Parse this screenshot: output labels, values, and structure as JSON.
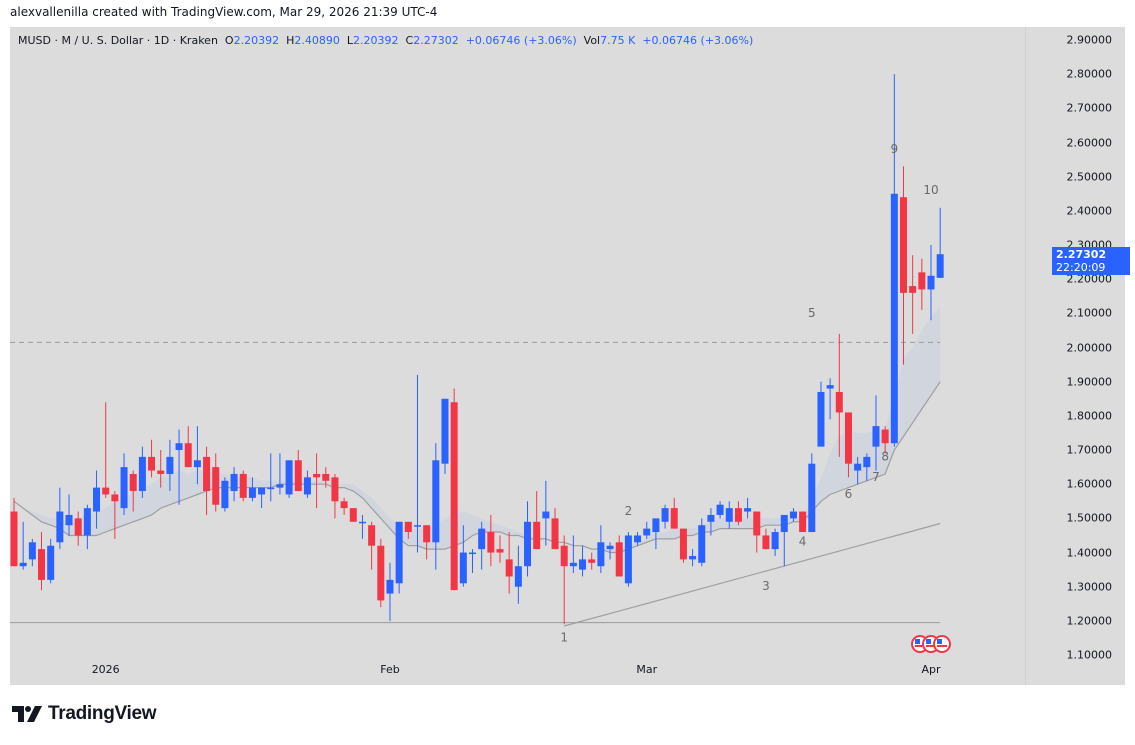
{
  "credit": "alexvallenilla created with TradingView.com, Mar 29, 2026 21:39 UTC-4",
  "legend": {
    "symbol": "MUSD · M / U. S. Dollar · 1D · Kraken",
    "o_label": "O",
    "o_value": "2.20392",
    "h_label": "H",
    "h_value": "2.40890",
    "l_label": "L",
    "l_value": "2.20392",
    "c_label": "C",
    "c_value": "2.27302",
    "change": "+0.06746 (+3.06%)",
    "vol_label": "Vol",
    "vol_value": "7.75 K",
    "vol_change": "+0.06746 (+3.06%)"
  },
  "last_price": {
    "price": "2.27302",
    "countdown": "22:20:09"
  },
  "brand": "TradingView",
  "colors": {
    "up": "#2962ff",
    "down": "#f23645",
    "background": "#dcdcdc",
    "ma_line": "#9e9e9e",
    "trendline": "#9e9e9e",
    "label": "#6a6a6a"
  },
  "chart_data": {
    "type": "candlestick",
    "title": "MUSD · M / U. S. Dollar · 1D · Kraken",
    "xlabel": "",
    "ylabel": "",
    "ylim": [
      1.1,
      2.9
    ],
    "y_ticks": [
      "2.90000",
      "2.80000",
      "2.70000",
      "2.60000",
      "2.50000",
      "2.40000",
      "2.30000",
      "2.20000",
      "2.10000",
      "2.00000",
      "1.90000",
      "1.80000",
      "1.70000",
      "1.60000",
      "1.50000",
      "1.40000",
      "1.30000",
      "1.20000",
      "1.10000"
    ],
    "x_ticks": [
      {
        "label": "2026",
        "index": 10
      },
      {
        "label": "Feb",
        "index": 41
      },
      {
        "label": "Mar",
        "index": 69
      },
      {
        "label": "Apr",
        "index": 100
      }
    ],
    "grid": false,
    "horizontal_level": 2.015,
    "support_line": 1.195,
    "candles": [
      {
        "o": 1.52,
        "h": 1.56,
        "l": 1.36,
        "c": 1.36
      },
      {
        "o": 1.36,
        "h": 1.49,
        "l": 1.35,
        "c": 1.37
      },
      {
        "o": 1.38,
        "h": 1.44,
        "l": 1.36,
        "c": 1.43
      },
      {
        "o": 1.41,
        "h": 1.46,
        "l": 1.29,
        "c": 1.32
      },
      {
        "o": 1.32,
        "h": 1.44,
        "l": 1.31,
        "c": 1.42
      },
      {
        "o": 1.43,
        "h": 1.59,
        "l": 1.41,
        "c": 1.52
      },
      {
        "o": 1.48,
        "h": 1.57,
        "l": 1.45,
        "c": 1.51
      },
      {
        "o": 1.5,
        "h": 1.52,
        "l": 1.42,
        "c": 1.45
      },
      {
        "o": 1.45,
        "h": 1.54,
        "l": 1.41,
        "c": 1.53
      },
      {
        "o": 1.52,
        "h": 1.64,
        "l": 1.47,
        "c": 1.59
      },
      {
        "o": 1.59,
        "h": 1.84,
        "l": 1.56,
        "c": 1.57
      },
      {
        "o": 1.57,
        "h": 1.58,
        "l": 1.44,
        "c": 1.55
      },
      {
        "o": 1.53,
        "h": 1.69,
        "l": 1.51,
        "c": 1.65
      },
      {
        "o": 1.63,
        "h": 1.64,
        "l": 1.52,
        "c": 1.58
      },
      {
        "o": 1.58,
        "h": 1.71,
        "l": 1.56,
        "c": 1.68
      },
      {
        "o": 1.68,
        "h": 1.73,
        "l": 1.62,
        "c": 1.64
      },
      {
        "o": 1.64,
        "h": 1.7,
        "l": 1.59,
        "c": 1.63
      },
      {
        "o": 1.63,
        "h": 1.73,
        "l": 1.58,
        "c": 1.68
      },
      {
        "o": 1.7,
        "h": 1.76,
        "l": 1.54,
        "c": 1.72
      },
      {
        "o": 1.72,
        "h": 1.77,
        "l": 1.65,
        "c": 1.65
      },
      {
        "o": 1.65,
        "h": 1.77,
        "l": 1.6,
        "c": 1.67
      },
      {
        "o": 1.68,
        "h": 1.71,
        "l": 1.51,
        "c": 1.58
      },
      {
        "o": 1.65,
        "h": 1.69,
        "l": 1.52,
        "c": 1.54
      },
      {
        "o": 1.53,
        "h": 1.62,
        "l": 1.52,
        "c": 1.61
      },
      {
        "o": 1.58,
        "h": 1.65,
        "l": 1.55,
        "c": 1.63
      },
      {
        "o": 1.63,
        "h": 1.64,
        "l": 1.55,
        "c": 1.56
      },
      {
        "o": 1.56,
        "h": 1.62,
        "l": 1.55,
        "c": 1.59
      },
      {
        "o": 1.57,
        "h": 1.59,
        "l": 1.53,
        "c": 1.59
      },
      {
        "o": 1.59,
        "h": 1.69,
        "l": 1.55,
        "c": 1.59
      },
      {
        "o": 1.59,
        "h": 1.69,
        "l": 1.57,
        "c": 1.6
      },
      {
        "o": 1.57,
        "h": 1.67,
        "l": 1.56,
        "c": 1.67
      },
      {
        "o": 1.67,
        "h": 1.7,
        "l": 1.58,
        "c": 1.58
      },
      {
        "o": 1.57,
        "h": 1.64,
        "l": 1.56,
        "c": 1.62
      },
      {
        "o": 1.63,
        "h": 1.69,
        "l": 1.53,
        "c": 1.62
      },
      {
        "o": 1.63,
        "h": 1.65,
        "l": 1.59,
        "c": 1.61
      },
      {
        "o": 1.62,
        "h": 1.63,
        "l": 1.5,
        "c": 1.55
      },
      {
        "o": 1.55,
        "h": 1.56,
        "l": 1.51,
        "c": 1.53
      },
      {
        "o": 1.53,
        "h": 1.52,
        "l": 1.49,
        "c": 1.49
      },
      {
        "o": 1.49,
        "h": 1.51,
        "l": 1.44,
        "c": 1.49
      },
      {
        "o": 1.48,
        "h": 1.49,
        "l": 1.35,
        "c": 1.42
      },
      {
        "o": 1.42,
        "h": 1.44,
        "l": 1.24,
        "c": 1.26
      },
      {
        "o": 1.28,
        "h": 1.37,
        "l": 1.2,
        "c": 1.32
      },
      {
        "o": 1.31,
        "h": 1.47,
        "l": 1.28,
        "c": 1.49
      },
      {
        "o": 1.49,
        "h": 1.48,
        "l": 1.44,
        "c": 1.46
      },
      {
        "o": 1.48,
        "h": 1.92,
        "l": 1.4,
        "c": 1.48
      },
      {
        "o": 1.48,
        "h": 1.47,
        "l": 1.38,
        "c": 1.43
      },
      {
        "o": 1.43,
        "h": 1.72,
        "l": 1.35,
        "c": 1.67
      },
      {
        "o": 1.66,
        "h": 1.85,
        "l": 1.63,
        "c": 1.85
      },
      {
        "o": 1.84,
        "h": 1.88,
        "l": 1.29,
        "c": 1.29
      },
      {
        "o": 1.31,
        "h": 1.48,
        "l": 1.3,
        "c": 1.4
      },
      {
        "o": 1.4,
        "h": 1.41,
        "l": 1.34,
        "c": 1.4
      },
      {
        "o": 1.41,
        "h": 1.49,
        "l": 1.35,
        "c": 1.47
      },
      {
        "o": 1.46,
        "h": 1.51,
        "l": 1.36,
        "c": 1.4
      },
      {
        "o": 1.41,
        "h": 1.45,
        "l": 1.37,
        "c": 1.4
      },
      {
        "o": 1.38,
        "h": 1.46,
        "l": 1.28,
        "c": 1.33
      },
      {
        "o": 1.3,
        "h": 1.42,
        "l": 1.25,
        "c": 1.36
      },
      {
        "o": 1.36,
        "h": 1.55,
        "l": 1.33,
        "c": 1.49
      },
      {
        "o": 1.49,
        "h": 1.58,
        "l": 1.43,
        "c": 1.41
      },
      {
        "o": 1.5,
        "h": 1.61,
        "l": 1.42,
        "c": 1.52
      },
      {
        "o": 1.5,
        "h": 1.53,
        "l": 1.41,
        "c": 1.41
      },
      {
        "o": 1.42,
        "h": 1.45,
        "l": 1.19,
        "c": 1.36
      },
      {
        "o": 1.36,
        "h": 1.45,
        "l": 1.34,
        "c": 1.37
      },
      {
        "o": 1.35,
        "h": 1.42,
        "l": 1.33,
        "c": 1.38
      },
      {
        "o": 1.38,
        "h": 1.4,
        "l": 1.35,
        "c": 1.37
      },
      {
        "o": 1.36,
        "h": 1.48,
        "l": 1.34,
        "c": 1.43
      },
      {
        "o": 1.41,
        "h": 1.43,
        "l": 1.38,
        "c": 1.42
      },
      {
        "o": 1.43,
        "h": 1.45,
        "l": 1.36,
        "c": 1.33
      },
      {
        "o": 1.31,
        "h": 1.46,
        "l": 1.3,
        "c": 1.45
      },
      {
        "o": 1.43,
        "h": 1.46,
        "l": 1.42,
        "c": 1.45
      },
      {
        "o": 1.45,
        "h": 1.49,
        "l": 1.44,
        "c": 1.47
      },
      {
        "o": 1.46,
        "h": 1.5,
        "l": 1.41,
        "c": 1.5
      },
      {
        "o": 1.49,
        "h": 1.54,
        "l": 1.47,
        "c": 1.53
      },
      {
        "o": 1.53,
        "h": 1.56,
        "l": 1.49,
        "c": 1.47
      },
      {
        "o": 1.47,
        "h": 1.46,
        "l": 1.37,
        "c": 1.38
      },
      {
        "o": 1.38,
        "h": 1.41,
        "l": 1.36,
        "c": 1.39
      },
      {
        "o": 1.37,
        "h": 1.5,
        "l": 1.36,
        "c": 1.48
      },
      {
        "o": 1.49,
        "h": 1.53,
        "l": 1.45,
        "c": 1.51
      },
      {
        "o": 1.51,
        "h": 1.55,
        "l": 1.5,
        "c": 1.54
      },
      {
        "o": 1.49,
        "h": 1.55,
        "l": 1.47,
        "c": 1.53
      },
      {
        "o": 1.53,
        "h": 1.55,
        "l": 1.48,
        "c": 1.49
      },
      {
        "o": 1.52,
        "h": 1.56,
        "l": 1.5,
        "c": 1.53
      },
      {
        "o": 1.52,
        "h": 1.52,
        "l": 1.4,
        "c": 1.45
      },
      {
        "o": 1.45,
        "h": 1.47,
        "l": 1.41,
        "c": 1.41
      },
      {
        "o": 1.41,
        "h": 1.47,
        "l": 1.39,
        "c": 1.46
      },
      {
        "o": 1.46,
        "h": 1.51,
        "l": 1.36,
        "c": 1.51
      },
      {
        "o": 1.5,
        "h": 1.53,
        "l": 1.49,
        "c": 1.52
      },
      {
        "o": 1.52,
        "h": 1.52,
        "l": 1.46,
        "c": 1.46
      },
      {
        "o": 1.46,
        "h": 1.69,
        "l": 1.46,
        "c": 1.66
      },
      {
        "o": 1.71,
        "h": 1.9,
        "l": 1.71,
        "c": 1.87
      },
      {
        "o": 1.88,
        "h": 1.91,
        "l": 1.79,
        "c": 1.89
      },
      {
        "o": 1.87,
        "h": 2.04,
        "l": 1.68,
        "c": 1.81
      },
      {
        "o": 1.81,
        "h": 1.81,
        "l": 1.62,
        "c": 1.66
      },
      {
        "o": 1.64,
        "h": 1.68,
        "l": 1.6,
        "c": 1.66
      },
      {
        "o": 1.65,
        "h": 1.69,
        "l": 1.61,
        "c": 1.68
      },
      {
        "o": 1.71,
        "h": 1.86,
        "l": 1.64,
        "c": 1.77
      },
      {
        "o": 1.76,
        "h": 1.77,
        "l": 1.69,
        "c": 1.72
      },
      {
        "o": 1.72,
        "h": 2.8,
        "l": 1.71,
        "c": 2.45
      },
      {
        "o": 2.44,
        "h": 2.53,
        "l": 1.95,
        "c": 2.16
      },
      {
        "o": 2.18,
        "h": 2.27,
        "l": 2.04,
        "c": 2.16
      },
      {
        "o": 2.22,
        "h": 2.26,
        "l": 2.11,
        "c": 2.17
      },
      {
        "o": 2.17,
        "h": 2.3,
        "l": 2.08,
        "c": 2.21
      },
      {
        "o": 2.20392,
        "h": 2.4089,
        "l": 2.20392,
        "c": 2.27302
      }
    ],
    "ma_band": {
      "upper": [
        1.55,
        1.53,
        1.52,
        1.51,
        1.5,
        1.5,
        1.49,
        1.5,
        1.51,
        1.52,
        1.53,
        1.55,
        1.56,
        1.58,
        1.59,
        1.6,
        1.62,
        1.63,
        1.64,
        1.63,
        1.64,
        1.64,
        1.63,
        1.63,
        1.62,
        1.62,
        1.62,
        1.61,
        1.61,
        1.61,
        1.61,
        1.61,
        1.61,
        1.61,
        1.61,
        1.6,
        1.6,
        1.6,
        1.58,
        1.56,
        1.53,
        1.5,
        1.48,
        1.47,
        1.47,
        1.47,
        1.48,
        1.5,
        1.51,
        1.52,
        1.51,
        1.5,
        1.49,
        1.48,
        1.47,
        1.46,
        1.45,
        1.45,
        1.44,
        1.44,
        1.43,
        1.42,
        1.42,
        1.41,
        1.41,
        1.41,
        1.41,
        1.42,
        1.43,
        1.44,
        1.46,
        1.46,
        1.47,
        1.47,
        1.47,
        1.48,
        1.49,
        1.5,
        1.5,
        1.5,
        1.5,
        1.5,
        1.5,
        1.5,
        1.5,
        1.5,
        1.5,
        1.55,
        1.62,
        1.69,
        1.74,
        1.76,
        1.75,
        1.75,
        1.76,
        1.76,
        1.85,
        1.97,
        2.0,
        2.05,
        2.09,
        2.12
      ],
      "lower": [
        1.55,
        1.53,
        1.51,
        1.49,
        1.48,
        1.47,
        1.45,
        1.45,
        1.45,
        1.45,
        1.46,
        1.47,
        1.48,
        1.49,
        1.5,
        1.51,
        1.53,
        1.54,
        1.55,
        1.56,
        1.57,
        1.58,
        1.59,
        1.59,
        1.59,
        1.59,
        1.59,
        1.59,
        1.59,
        1.6,
        1.6,
        1.6,
        1.6,
        1.6,
        1.6,
        1.59,
        1.59,
        1.58,
        1.56,
        1.53,
        1.5,
        1.47,
        1.44,
        1.42,
        1.42,
        1.41,
        1.41,
        1.41,
        1.42,
        1.43,
        1.45,
        1.46,
        1.46,
        1.46,
        1.45,
        1.45,
        1.44,
        1.44,
        1.44,
        1.43,
        1.43,
        1.42,
        1.42,
        1.41,
        1.41,
        1.4,
        1.4,
        1.41,
        1.42,
        1.43,
        1.44,
        1.44,
        1.44,
        1.45,
        1.45,
        1.46,
        1.46,
        1.47,
        1.47,
        1.47,
        1.47,
        1.47,
        1.48,
        1.48,
        1.48,
        1.49,
        1.49,
        1.52,
        1.55,
        1.57,
        1.58,
        1.59,
        1.6,
        1.61,
        1.62,
        1.63,
        1.7,
        1.74,
        1.78,
        1.82,
        1.86,
        1.9
      ]
    },
    "trendline": {
      "from": {
        "index": 60,
        "price": 1.185
      },
      "to": {
        "index": 101,
        "price": 1.485
      }
    },
    "wave_labels": [
      {
        "text": "1",
        "index": 60,
        "price": 1.14
      },
      {
        "text": "2",
        "index": 67,
        "price": 1.51
      },
      {
        "text": "3",
        "index": 82,
        "price": 1.29
      },
      {
        "text": "4",
        "index": 86,
        "price": 1.42
      },
      {
        "text": "5",
        "index": 87,
        "price": 2.09
      },
      {
        "text": "6",
        "index": 91,
        "price": 1.56
      },
      {
        "text": "7",
        "index": 94,
        "price": 1.61
      },
      {
        "text": "8",
        "index": 95,
        "price": 1.67
      },
      {
        "text": "9",
        "index": 96,
        "price": 2.57
      },
      {
        "text": "10",
        "index": 100,
        "price": 2.45
      }
    ]
  }
}
